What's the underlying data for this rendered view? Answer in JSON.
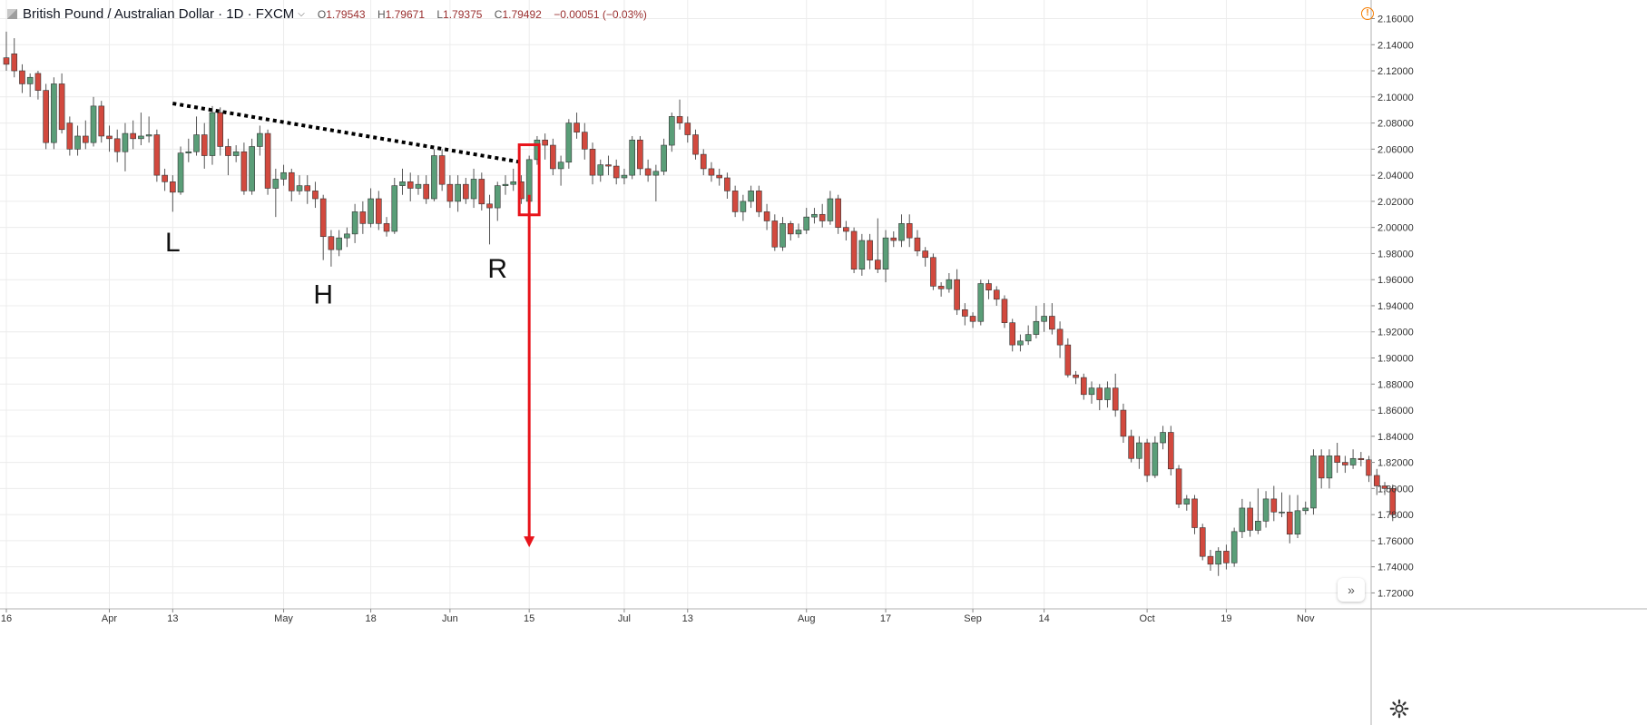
{
  "header": {
    "title": "British Pound / Australian Dollar · 1D · FXCM",
    "o_label": "O",
    "o_value": "1.79543",
    "h_label": "H",
    "h_value": "1.79671",
    "l_label": "L",
    "l_value": "1.79375",
    "c_label": "C",
    "c_value": "1.79492",
    "change": "−0.00051 (−0.03%)"
  },
  "icons": {
    "dropdown": "chevron-down-icon",
    "alert": "exclamation-icon",
    "scroll": "double-chevron-right-icon",
    "settings": "gear-icon"
  },
  "labels": {
    "alert_glyph": "!",
    "scroll_glyph": "»"
  },
  "colors": {
    "up": "#5a9e78",
    "down": "#d2493e",
    "annotation": "#e8141b",
    "trendline": "#000000",
    "grid": "#ececec"
  },
  "chart_data": {
    "type": "candlestick",
    "title": "British Pound / Australian Dollar",
    "interval": "1D",
    "source": "FXCM",
    "ylim": [
      1.71,
      2.17
    ],
    "y_ticks": [
      "2.16000",
      "2.14000",
      "2.12000",
      "2.10000",
      "2.08000",
      "2.06000",
      "2.04000",
      "2.02000",
      "2.00000",
      "1.98000",
      "1.96000",
      "1.94000",
      "1.92000",
      "1.90000",
      "1.88000",
      "1.86000",
      "1.84000",
      "1.82000",
      "1.80000",
      "1.78000",
      "1.76000",
      "1.74000",
      "1.72000"
    ],
    "x_ticks": [
      {
        "label": "16",
        "i": 0
      },
      {
        "label": "Apr",
        "i": 13
      },
      {
        "label": "13",
        "i": 21
      },
      {
        "label": "May",
        "i": 35
      },
      {
        "label": "18",
        "i": 46
      },
      {
        "label": "Jun",
        "i": 56
      },
      {
        "label": "15",
        "i": 66
      },
      {
        "label": "Jul",
        "i": 78
      },
      {
        "label": "13",
        "i": 86
      },
      {
        "label": "Aug",
        "i": 101
      },
      {
        "label": "17",
        "i": 111
      },
      {
        "label": "Sep",
        "i": 122
      },
      {
        "label": "14",
        "i": 131
      },
      {
        "label": "Oct",
        "i": 144
      },
      {
        "label": "19",
        "i": 154
      },
      {
        "label": "Nov",
        "i": 164
      }
    ],
    "candles": [
      [
        2.13,
        2.125,
        2.15,
        2.12
      ],
      [
        2.133,
        2.12,
        2.145,
        2.115
      ],
      [
        2.12,
        2.11,
        2.125,
        2.103
      ],
      [
        2.11,
        2.115,
        2.118,
        2.1
      ],
      [
        2.118,
        2.105,
        2.12,
        2.098
      ],
      [
        2.105,
        2.065,
        2.11,
        2.06
      ],
      [
        2.065,
        2.11,
        2.115,
        2.06
      ],
      [
        2.11,
        2.075,
        2.118,
        2.072
      ],
      [
        2.08,
        2.06,
        2.085,
        2.055
      ],
      [
        2.06,
        2.07,
        2.078,
        2.055
      ],
      [
        2.07,
        2.065,
        2.082,
        2.06
      ],
      [
        2.065,
        2.093,
        2.1,
        2.062
      ],
      [
        2.093,
        2.07,
        2.097,
        2.065
      ],
      [
        2.07,
        2.068,
        2.078,
        2.058
      ],
      [
        2.068,
        2.058,
        2.075,
        2.05
      ],
      [
        2.058,
        2.072,
        2.08,
        2.043
      ],
      [
        2.072,
        2.068,
        2.082,
        2.06
      ],
      [
        2.068,
        2.07,
        2.088,
        2.063
      ],
      [
        2.07,
        2.071,
        2.085,
        2.065
      ],
      [
        2.071,
        2.04,
        2.075,
        2.035
      ],
      [
        2.04,
        2.035,
        2.045,
        2.028
      ],
      [
        2.035,
        2.027,
        2.04,
        2.012
      ],
      [
        2.027,
        2.057,
        2.062,
        2.025
      ],
      [
        2.057,
        2.058,
        2.068,
        2.05
      ],
      [
        2.058,
        2.071,
        2.085,
        2.055
      ],
      [
        2.071,
        2.055,
        2.08,
        2.045
      ],
      [
        2.055,
        2.088,
        2.093,
        2.048
      ],
      [
        2.088,
        2.062,
        2.092,
        2.055
      ],
      [
        2.062,
        2.055,
        2.068,
        2.04
      ],
      [
        2.055,
        2.058,
        2.063,
        2.05
      ],
      [
        2.058,
        2.028,
        2.065,
        2.025
      ],
      [
        2.028,
        2.062,
        2.068,
        2.025
      ],
      [
        2.062,
        2.072,
        2.078,
        2.055
      ],
      [
        2.072,
        2.03,
        2.075,
        2.025
      ],
      [
        2.03,
        2.037,
        2.045,
        2.008
      ],
      [
        2.037,
        2.042,
        2.048,
        2.032
      ],
      [
        2.042,
        2.028,
        2.045,
        2.02
      ],
      [
        2.028,
        2.032,
        2.04,
        2.025
      ],
      [
        2.032,
        2.028,
        2.04,
        2.018
      ],
      [
        2.028,
        2.022,
        2.035,
        2.015
      ],
      [
        2.022,
        1.993,
        2.025,
        1.975
      ],
      [
        1.993,
        1.983,
        1.998,
        1.97
      ],
      [
        1.983,
        1.992,
        1.998,
        1.978
      ],
      [
        1.992,
        1.995,
        2.0,
        1.985
      ],
      [
        1.995,
        2.012,
        2.018,
        1.988
      ],
      [
        2.012,
        2.003,
        2.02,
        1.995
      ],
      [
        2.003,
        2.022,
        2.03,
        2.0
      ],
      [
        2.022,
        2.003,
        2.028,
        1.998
      ],
      [
        2.003,
        1.997,
        2.008,
        1.993
      ],
      [
        1.997,
        2.032,
        2.038,
        1.995
      ],
      [
        2.032,
        2.035,
        2.045,
        2.025
      ],
      [
        2.035,
        2.03,
        2.042,
        2.02
      ],
      [
        2.03,
        2.033,
        2.04,
        2.025
      ],
      [
        2.033,
        2.022,
        2.04,
        2.018
      ],
      [
        2.022,
        2.055,
        2.06,
        2.02
      ],
      [
        2.055,
        2.033,
        2.06,
        2.028
      ],
      [
        2.033,
        2.02,
        2.04,
        2.015
      ],
      [
        2.02,
        2.033,
        2.04,
        2.012
      ],
      [
        2.033,
        2.022,
        2.038,
        2.018
      ],
      [
        2.022,
        2.037,
        2.045,
        2.015
      ],
      [
        2.037,
        2.018,
        2.042,
        2.013
      ],
      [
        2.018,
        2.015,
        2.025,
        1.987
      ],
      [
        2.015,
        2.032,
        2.035,
        2.005
      ],
      [
        2.032,
        2.033,
        2.04,
        2.025
      ],
      [
        2.033,
        2.035,
        2.045,
        2.028
      ],
      [
        2.035,
        2.022,
        2.04,
        2.018
      ],
      [
        2.02,
        2.052,
        2.055,
        2.018
      ],
      [
        2.052,
        2.067,
        2.07,
        2.048
      ],
      [
        2.067,
        2.063,
        2.072,
        2.052
      ],
      [
        2.063,
        2.045,
        2.068,
        2.04
      ],
      [
        2.045,
        2.05,
        2.055,
        2.032
      ],
      [
        2.05,
        2.08,
        2.083,
        2.045
      ],
      [
        2.08,
        2.073,
        2.088,
        2.068
      ],
      [
        2.073,
        2.06,
        2.08,
        2.052
      ],
      [
        2.06,
        2.04,
        2.065,
        2.033
      ],
      [
        2.04,
        2.048,
        2.052,
        2.035
      ],
      [
        2.048,
        2.047,
        2.055,
        2.04
      ],
      [
        2.047,
        2.038,
        2.052,
        2.033
      ],
      [
        2.038,
        2.04,
        2.045,
        2.033
      ],
      [
        2.04,
        2.067,
        2.07,
        2.037
      ],
      [
        2.067,
        2.045,
        2.07,
        2.04
      ],
      [
        2.045,
        2.04,
        2.052,
        2.035
      ],
      [
        2.04,
        2.043,
        2.048,
        2.02
      ],
      [
        2.043,
        2.063,
        2.068,
        2.04
      ],
      [
        2.063,
        2.085,
        2.088,
        2.058
      ],
      [
        2.085,
        2.08,
        2.098,
        2.075
      ],
      [
        2.08,
        2.071,
        2.085,
        2.065
      ],
      [
        2.071,
        2.056,
        2.075,
        2.052
      ],
      [
        2.056,
        2.045,
        2.06,
        2.04
      ],
      [
        2.045,
        2.04,
        2.05,
        2.035
      ],
      [
        2.04,
        2.038,
        2.045,
        2.032
      ],
      [
        2.038,
        2.028,
        2.042,
        2.022
      ],
      [
        2.028,
        2.012,
        2.032,
        2.008
      ],
      [
        2.012,
        2.02,
        2.025,
        2.005
      ],
      [
        2.02,
        2.028,
        2.032,
        2.015
      ],
      [
        2.028,
        2.012,
        2.032,
        2.008
      ],
      [
        2.012,
        2.005,
        2.018,
        1.998
      ],
      [
        2.005,
        1.985,
        2.01,
        1.982
      ],
      [
        1.985,
        2.003,
        2.008,
        1.982
      ],
      [
        2.003,
        1.995,
        2.005,
        1.99
      ],
      [
        1.995,
        1.998,
        2.003,
        1.992
      ],
      [
        1.998,
        2.008,
        2.015,
        1.995
      ],
      [
        2.008,
        2.01,
        2.015,
        2.003
      ],
      [
        2.01,
        2.005,
        2.018,
        2.0
      ],
      [
        2.005,
        2.022,
        2.028,
        2.002
      ],
      [
        2.022,
        2.0,
        2.025,
        1.995
      ],
      [
        2.0,
        1.997,
        2.005,
        1.99
      ],
      [
        1.997,
        1.968,
        2.0,
        1.965
      ],
      [
        1.968,
        1.99,
        1.995,
        1.963
      ],
      [
        1.99,
        1.975,
        1.995,
        1.968
      ],
      [
        1.975,
        1.968,
        2.007,
        1.965
      ],
      [
        1.968,
        1.992,
        1.998,
        1.958
      ],
      [
        1.992,
        1.99,
        1.997,
        1.985
      ],
      [
        1.99,
        2.003,
        2.01,
        1.985
      ],
      [
        2.003,
        1.992,
        2.01,
        1.985
      ],
      [
        1.992,
        1.982,
        1.998,
        1.978
      ],
      [
        1.982,
        1.977,
        1.985,
        1.97
      ],
      [
        1.977,
        1.955,
        1.98,
        1.952
      ],
      [
        1.955,
        1.953,
        1.958,
        1.947
      ],
      [
        1.953,
        1.96,
        1.965,
        1.95
      ],
      [
        1.96,
        1.937,
        1.968,
        1.933
      ],
      [
        1.937,
        1.932,
        1.942,
        1.925
      ],
      [
        1.932,
        1.928,
        1.935,
        1.923
      ],
      [
        1.928,
        1.957,
        1.96,
        1.925
      ],
      [
        1.957,
        1.952,
        1.96,
        1.945
      ],
      [
        1.952,
        1.945,
        1.955,
        1.94
      ],
      [
        1.945,
        1.927,
        1.948,
        1.923
      ],
      [
        1.927,
        1.91,
        1.93,
        1.905
      ],
      [
        1.91,
        1.913,
        1.918,
        1.905
      ],
      [
        1.913,
        1.918,
        1.925,
        1.91
      ],
      [
        1.918,
        1.928,
        1.94,
        1.915
      ],
      [
        1.928,
        1.932,
        1.942,
        1.92
      ],
      [
        1.932,
        1.922,
        1.942,
        1.918
      ],
      [
        1.922,
        1.91,
        1.928,
        1.9
      ],
      [
        1.91,
        1.887,
        1.915,
        1.885
      ],
      [
        1.887,
        1.885,
        1.89,
        1.88
      ],
      [
        1.885,
        1.872,
        1.888,
        1.868
      ],
      [
        1.872,
        1.877,
        1.882,
        1.865
      ],
      [
        1.877,
        1.868,
        1.88,
        1.86
      ],
      [
        1.868,
        1.877,
        1.882,
        1.862
      ],
      [
        1.877,
        1.86,
        1.888,
        1.855
      ],
      [
        1.86,
        1.84,
        1.865,
        1.835
      ],
      [
        1.84,
        1.823,
        1.845,
        1.82
      ],
      [
        1.823,
        1.835,
        1.84,
        1.815
      ],
      [
        1.835,
        1.81,
        1.838,
        1.805
      ],
      [
        1.81,
        1.835,
        1.84,
        1.808
      ],
      [
        1.835,
        1.843,
        1.848,
        1.83
      ],
      [
        1.843,
        1.815,
        1.848,
        1.81
      ],
      [
        1.815,
        1.788,
        1.818,
        1.785
      ],
      [
        1.788,
        1.792,
        1.795,
        1.783
      ],
      [
        1.792,
        1.77,
        1.795,
        1.765
      ],
      [
        1.77,
        1.748,
        1.773,
        1.745
      ],
      [
        1.748,
        1.742,
        1.753,
        1.737
      ],
      [
        1.742,
        1.752,
        1.755,
        1.733
      ],
      [
        1.752,
        1.743,
        1.757,
        1.738
      ],
      [
        1.743,
        1.767,
        1.77,
        1.74
      ],
      [
        1.767,
        1.785,
        1.792,
        1.762
      ],
      [
        1.785,
        1.768,
        1.79,
        1.763
      ],
      [
        1.768,
        1.775,
        1.8,
        1.765
      ],
      [
        1.775,
        1.792,
        1.798,
        1.77
      ],
      [
        1.792,
        1.782,
        1.802,
        1.775
      ],
      [
        1.782,
        1.782,
        1.797,
        1.778
      ],
      [
        1.782,
        1.765,
        1.795,
        1.758
      ],
      [
        1.765,
        1.783,
        1.795,
        1.762
      ],
      [
        1.783,
        1.785,
        1.79,
        1.78
      ],
      [
        1.785,
        1.825,
        1.83,
        1.78
      ],
      [
        1.825,
        1.808,
        1.83,
        1.8
      ],
      [
        1.808,
        1.825,
        1.83,
        1.8
      ],
      [
        1.825,
        1.82,
        1.835,
        1.812
      ],
      [
        1.82,
        1.818,
        1.825,
        1.812
      ],
      [
        1.818,
        1.823,
        1.83,
        1.815
      ],
      [
        1.823,
        1.822,
        1.828,
        1.817
      ],
      [
        1.822,
        1.81,
        1.825,
        1.805
      ],
      [
        1.81,
        1.802,
        1.815,
        1.795
      ],
      [
        1.802,
        1.8,
        1.805,
        1.795
      ],
      [
        1.8,
        1.78,
        1.803,
        1.775
      ]
    ],
    "trendline": {
      "from": {
        "i": 21,
        "price": 2.095
      },
      "to": {
        "i": 65,
        "price": 2.05
      },
      "style": "dotted"
    },
    "highlight": {
      "i": 66,
      "label_note": "breakout candle boxed in red"
    },
    "arrow": {
      "i": 66,
      "from_price": 2.025,
      "to_price": 1.755,
      "direction": "down"
    },
    "annotations": [
      {
        "text": "L",
        "i": 21,
        "price": 1.99
      },
      {
        "text": "H",
        "i": 40,
        "price": 1.95
      },
      {
        "text": "R",
        "i": 62,
        "price": 1.97
      }
    ]
  }
}
